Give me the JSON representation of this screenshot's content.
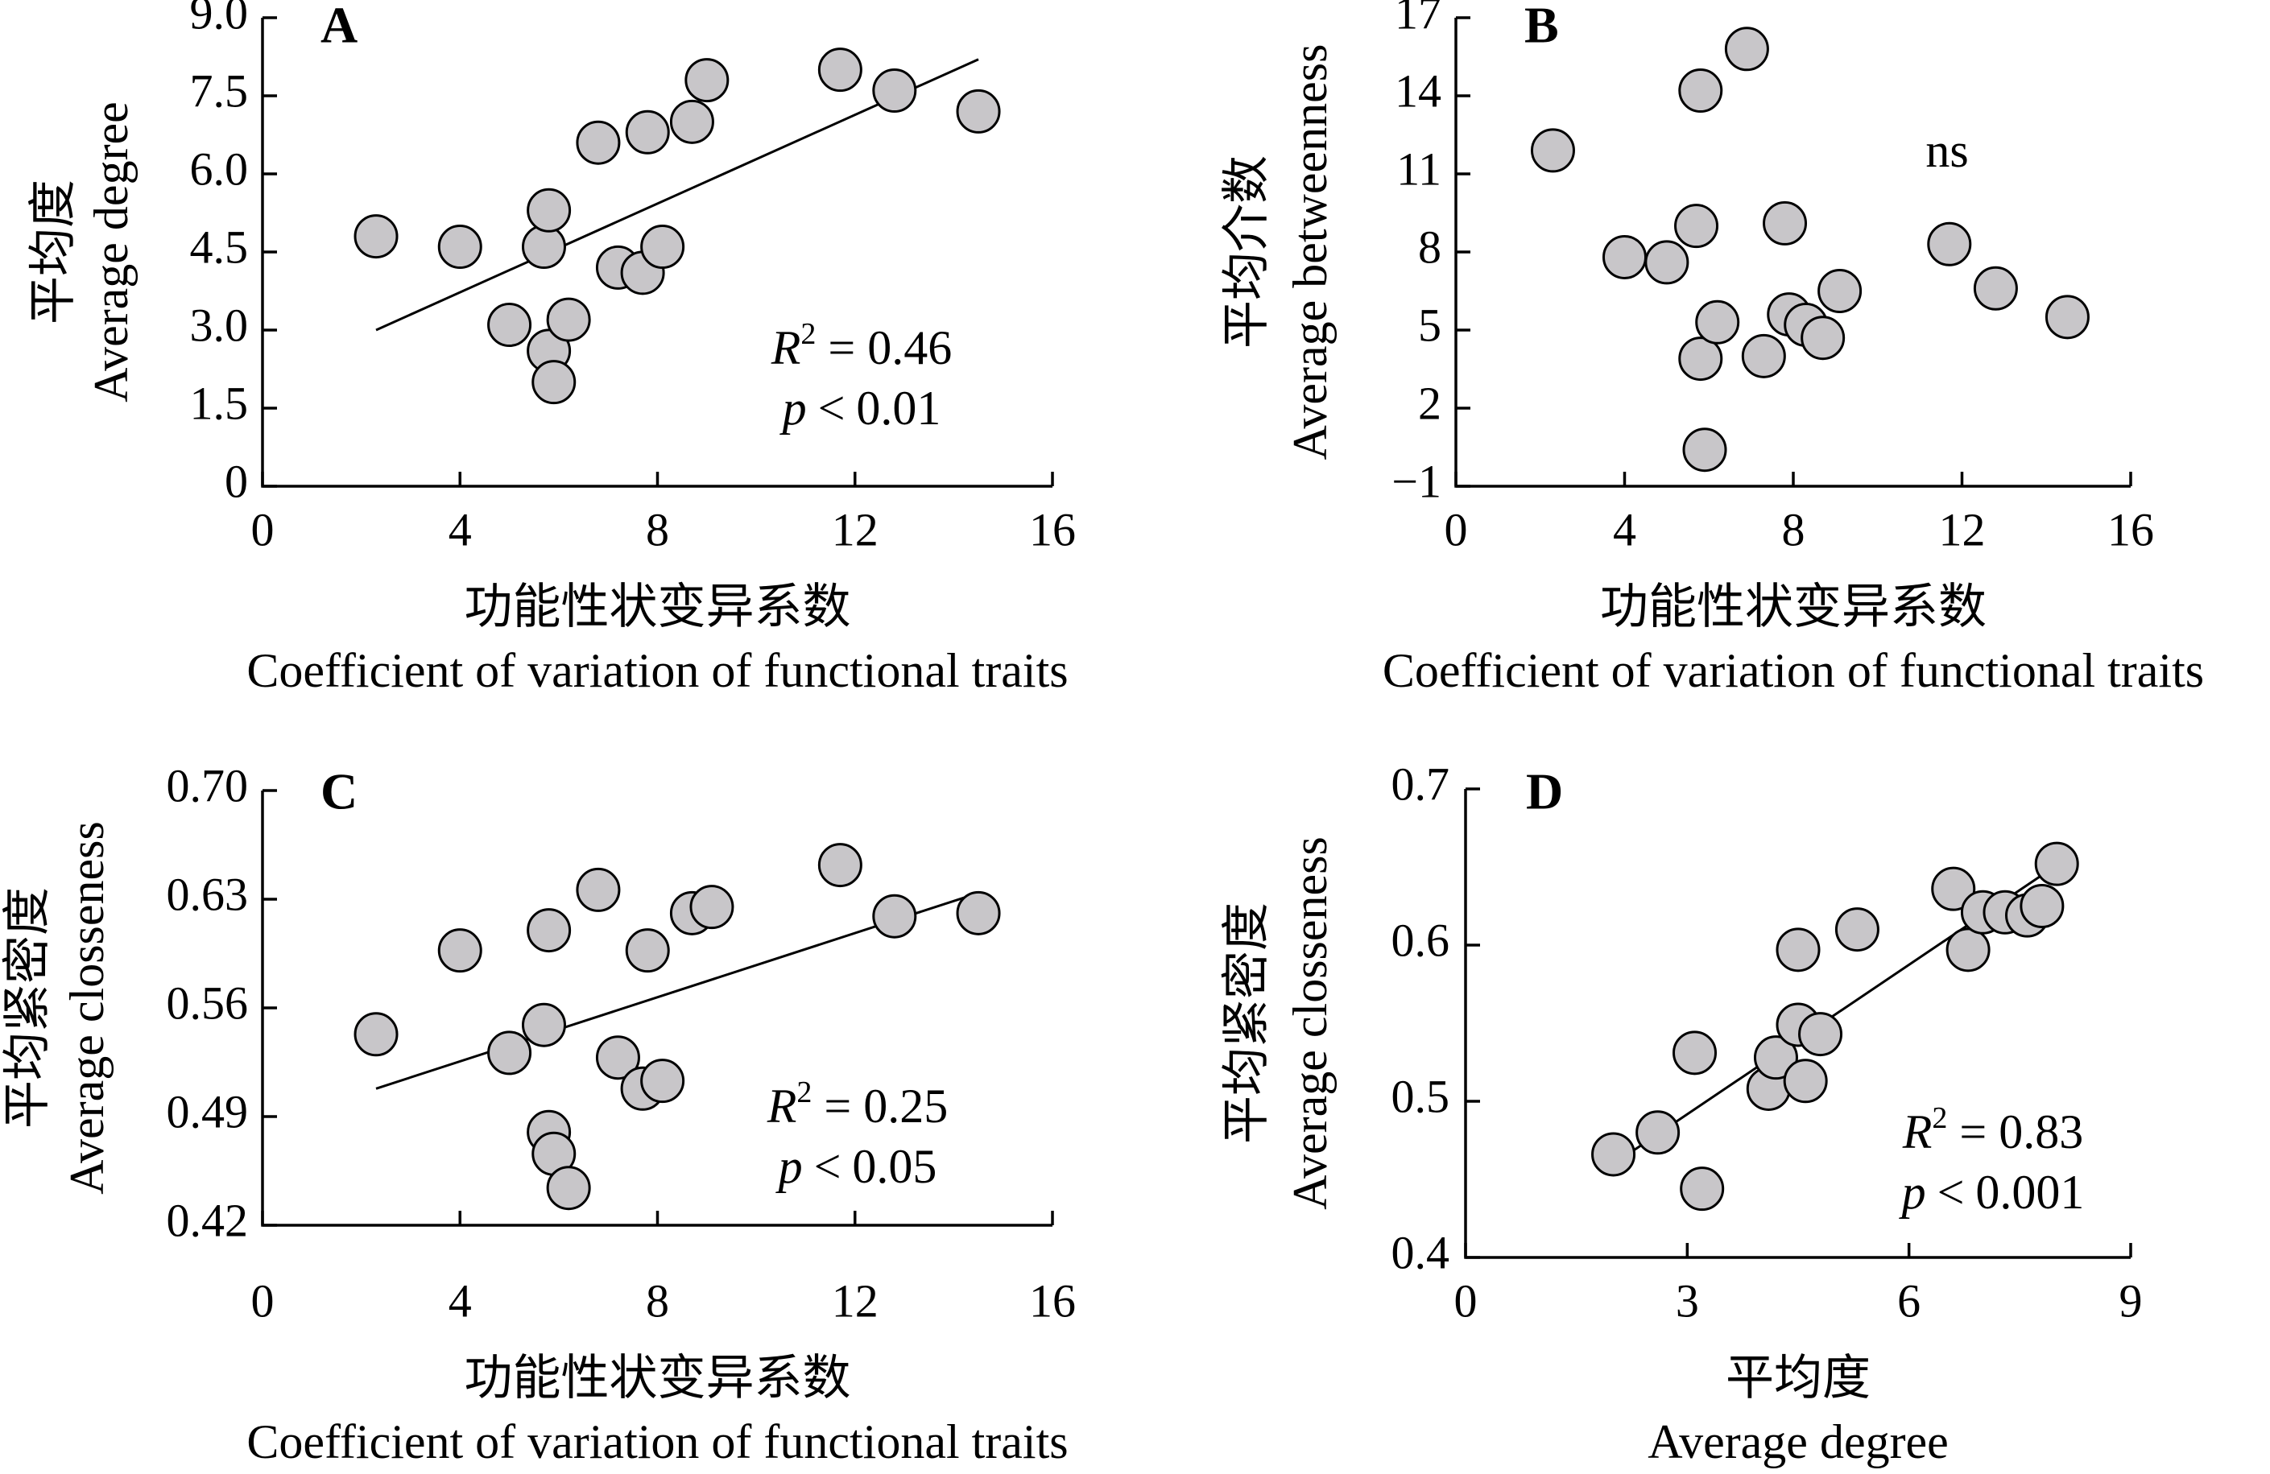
{
  "colors": {
    "point_fill": "#c8c6c9",
    "stroke": "#000000",
    "background": "#ffffff"
  },
  "chart_data": [
    {
      "panel": "A",
      "type": "scatter",
      "xlabel_cn": "功能性状变异系数",
      "xlabel_en": "Coefficient of variation of functional traits",
      "ylabel_cn": "平均度",
      "ylabel_en": "Average degree",
      "xlim": [
        0,
        16
      ],
      "ylim": [
        0,
        9
      ],
      "x_ticks": [
        "0",
        "4",
        "8",
        "12",
        "16"
      ],
      "y_ticks": [
        "0",
        "1.5",
        "3.0",
        "4.5",
        "6.0",
        "7.5",
        "9.0"
      ],
      "points": [
        [
          2.3,
          4.8
        ],
        [
          4.0,
          4.6
        ],
        [
          5.0,
          3.1
        ],
        [
          5.7,
          4.6
        ],
        [
          5.8,
          5.3
        ],
        [
          5.8,
          2.6
        ],
        [
          5.9,
          2.0
        ],
        [
          6.2,
          3.2
        ],
        [
          6.8,
          6.6
        ],
        [
          7.2,
          4.2
        ],
        [
          7.7,
          4.1
        ],
        [
          7.8,
          6.8
        ],
        [
          8.1,
          4.6
        ],
        [
          8.7,
          7.0
        ],
        [
          9.0,
          7.8
        ],
        [
          11.7,
          8.0
        ],
        [
          12.8,
          7.6
        ],
        [
          14.5,
          7.2
        ]
      ],
      "fit_line": {
        "x": [
          2.3,
          14.5
        ],
        "y": [
          3.0,
          8.2
        ]
      },
      "stat_r2": "0.46",
      "stat_p": "0.01",
      "stat_p_op": "<"
    },
    {
      "panel": "B",
      "type": "scatter",
      "xlabel_cn": "功能性状变异系数",
      "xlabel_en": "Coefficient of variation of functional traits",
      "ylabel_cn": "平均介数",
      "ylabel_en": "Average betweenness",
      "xlim": [
        0,
        16
      ],
      "ylim": [
        -1,
        17
      ],
      "x_ticks": [
        "0",
        "4",
        "8",
        "12",
        "16"
      ],
      "y_ticks": [
        "−1",
        "2",
        "5",
        "8",
        "11",
        "14",
        "17"
      ],
      "points": [
        [
          2.3,
          11.9
        ],
        [
          4.0,
          7.8
        ],
        [
          5.0,
          7.6
        ],
        [
          5.7,
          9.0
        ],
        [
          5.8,
          14.2
        ],
        [
          5.8,
          3.9
        ],
        [
          5.9,
          0.4
        ],
        [
          6.2,
          5.3
        ],
        [
          6.9,
          15.8
        ],
        [
          7.3,
          4.0
        ],
        [
          7.8,
          9.1
        ],
        [
          7.9,
          5.6
        ],
        [
          8.3,
          5.2
        ],
        [
          8.7,
          4.7
        ],
        [
          9.1,
          6.5
        ],
        [
          11.7,
          8.3
        ],
        [
          12.8,
          6.6
        ],
        [
          14.5,
          5.5
        ]
      ],
      "annotation": "ns"
    },
    {
      "panel": "C",
      "type": "scatter",
      "xlabel_cn": "功能性状变异系数",
      "xlabel_en": "Coefficient of variation of functional traits",
      "ylabel_cn": "平均紧密度",
      "ylabel_en": "Average closseness",
      "xlim": [
        0,
        16
      ],
      "ylim": [
        0.42,
        0.7
      ],
      "x_ticks": [
        "0",
        "4",
        "8",
        "12",
        "16"
      ],
      "y_ticks": [
        "0.42",
        "0.49",
        "0.56",
        "0.63",
        "0.70"
      ],
      "points": [
        [
          2.3,
          0.543
        ],
        [
          4.0,
          0.597
        ],
        [
          5.0,
          0.531
        ],
        [
          5.7,
          0.549
        ],
        [
          5.8,
          0.61
        ],
        [
          5.8,
          0.48
        ],
        [
          5.9,
          0.466
        ],
        [
          6.2,
          0.444
        ],
        [
          6.8,
          0.636
        ],
        [
          7.2,
          0.528
        ],
        [
          7.7,
          0.508
        ],
        [
          7.8,
          0.597
        ],
        [
          8.1,
          0.513
        ],
        [
          8.7,
          0.621
        ],
        [
          9.1,
          0.625
        ],
        [
          11.7,
          0.652
        ],
        [
          12.8,
          0.619
        ],
        [
          14.5,
          0.621
        ]
      ],
      "fit_line": {
        "x": [
          2.3,
          14.5
        ],
        "y": [
          0.508,
          0.634
        ]
      },
      "stat_r2": "0.25",
      "stat_p": "0.05",
      "stat_p_op": "<"
    },
    {
      "panel": "D",
      "type": "scatter",
      "xlabel_cn": "平均度",
      "xlabel_en": "Average degree",
      "ylabel_cn": "平均紧密度",
      "ylabel_en": "Average closseness",
      "xlim": [
        0,
        9
      ],
      "ylim": [
        0.4,
        0.7
      ],
      "x_ticks": [
        "0",
        "3",
        "6",
        "9"
      ],
      "y_ticks": [
        "0.4",
        "0.5",
        "0.6",
        "0.7"
      ],
      "points": [
        [
          2.0,
          0.466
        ],
        [
          2.6,
          0.48
        ],
        [
          3.1,
          0.531
        ],
        [
          3.2,
          0.444
        ],
        [
          4.1,
          0.508
        ],
        [
          4.2,
          0.528
        ],
        [
          4.5,
          0.597
        ],
        [
          4.5,
          0.549
        ],
        [
          4.6,
          0.513
        ],
        [
          4.8,
          0.543
        ],
        [
          5.3,
          0.61
        ],
        [
          6.6,
          0.636
        ],
        [
          6.8,
          0.597
        ],
        [
          7.0,
          0.621
        ],
        [
          7.3,
          0.621
        ],
        [
          7.6,
          0.619
        ],
        [
          7.8,
          0.625
        ],
        [
          8.0,
          0.652
        ]
      ],
      "fit_line": {
        "x": [
          2.1,
          7.9
        ],
        "y": [
          0.463,
          0.648
        ]
      },
      "stat_r2": "0.83",
      "stat_p": "0.001",
      "stat_p_op": "<"
    }
  ]
}
